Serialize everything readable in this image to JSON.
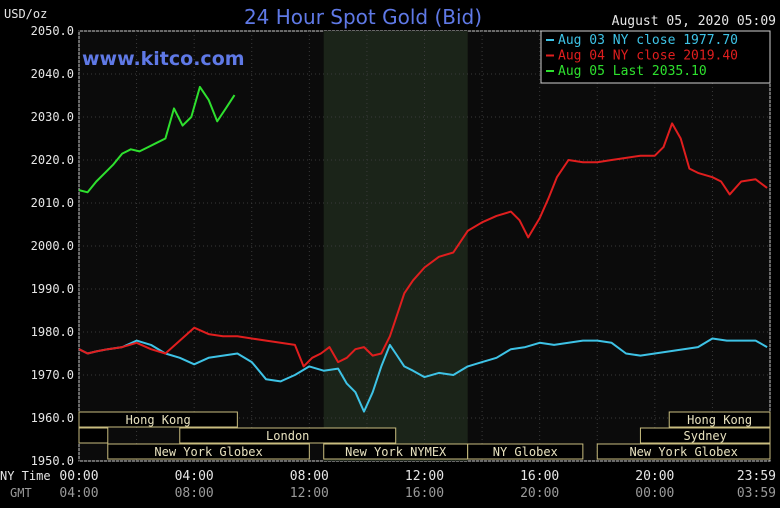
{
  "chart_data": {
    "type": "line",
    "title": "24 Hour Spot Gold (Bid)",
    "website": "www.kitco.com",
    "ylabel": "USD/oz",
    "timestamp": "August 05, 2020 05:09",
    "ylim": [
      1950,
      2050
    ],
    "xlim": [
      0,
      24
    ],
    "y_ticks": [
      "2050.0",
      "2040.0",
      "2030.0",
      "2020.0",
      "2010.0",
      "2000.0",
      "1990.0",
      "1980.0",
      "1970.0",
      "1960.0",
      "1950.0"
    ],
    "x_ticks_ny": [
      "00:00",
      "04:00",
      "08:00",
      "12:00",
      "16:00",
      "20:00",
      "23:59"
    ],
    "x_ticks_gmt": [
      "04:00",
      "08:00",
      "12:00",
      "16:00",
      "20:00",
      "00:00",
      "03:59"
    ],
    "x_row_labels": {
      "ny": "NY Time",
      "gmt": "GMT"
    },
    "grid": true,
    "legend_position": "top-right",
    "shaded_region": [
      8.5,
      13.5
    ],
    "sessions": [
      {
        "name": "Hong Kong",
        "start": 0,
        "end": 5.5,
        "row": 0
      },
      {
        "name": "Hong Kong",
        "start": 20.5,
        "end": 24,
        "row": 0
      },
      {
        "name": "",
        "start": 0,
        "end": 1,
        "row": 1
      },
      {
        "name": "London",
        "start": 3.5,
        "end": 11,
        "row": 1
      },
      {
        "name": "Sydney",
        "start": 19.5,
        "end": 24,
        "row": 1
      },
      {
        "name": "New York Globex",
        "start": 1,
        "end": 8,
        "row": 2
      },
      {
        "name": "New York NYMEX",
        "start": 8.5,
        "end": 13.5,
        "row": 2
      },
      {
        "name": "NY Globex",
        "start": 13.5,
        "end": 17.5,
        "row": 2
      },
      {
        "name": "New York Globex",
        "start": 18,
        "end": 24,
        "row": 2
      }
    ],
    "series": [
      {
        "name": "Aug 03 NY close 1977.70",
        "color": "#3ec3e6",
        "x": [
          0,
          0.3,
          0.6,
          1.0,
          1.5,
          2.0,
          2.5,
          3.0,
          3.5,
          4.0,
          4.5,
          5.0,
          5.5,
          6.0,
          6.5,
          7.0,
          7.5,
          8.0,
          8.5,
          9.0,
          9.3,
          9.6,
          9.9,
          10.2,
          10.5,
          10.8,
          11.0,
          11.3,
          11.6,
          12.0,
          12.5,
          13.0,
          13.5,
          14.0,
          14.5,
          15.0,
          15.5,
          16.0,
          16.5,
          17.0,
          17.5,
          18.0,
          18.5,
          19.0,
          19.5,
          20.0,
          20.5,
          21.0,
          21.5,
          22.0,
          22.5,
          23.0,
          23.5,
          23.9
        ],
        "values": [
          1976,
          1975,
          1975.5,
          1976,
          1976.5,
          1978,
          1977,
          1975,
          1974,
          1972.5,
          1974,
          1974.5,
          1975,
          1973,
          1969,
          1968.5,
          1970,
          1972,
          1971,
          1971.5,
          1968,
          1966,
          1961.5,
          1966,
          1972,
          1977,
          1975,
          1972,
          1971,
          1969.5,
          1970.5,
          1970,
          1972,
          1973,
          1974,
          1976,
          1976.5,
          1977.5,
          1977,
          1977.5,
          1978,
          1978,
          1977.5,
          1975,
          1974.5,
          1975,
          1975.5,
          1976,
          1976.5,
          1978.5,
          1978,
          1978,
          1978,
          1976.5
        ]
      },
      {
        "name": "Aug 04 NY close 2019.40",
        "color": "#e01e1e",
        "x": [
          0,
          0.3,
          0.6,
          1.0,
          1.5,
          2.0,
          2.5,
          3.0,
          3.5,
          4.0,
          4.5,
          5.0,
          5.5,
          6.0,
          6.5,
          7.0,
          7.5,
          7.8,
          8.1,
          8.4,
          8.7,
          9.0,
          9.3,
          9.6,
          9.9,
          10.2,
          10.5,
          10.8,
          11.0,
          11.3,
          11.6,
          12.0,
          12.5,
          13.0,
          13.5,
          14.0,
          14.5,
          15.0,
          15.3,
          15.6,
          16.0,
          16.3,
          16.6,
          17.0,
          17.5,
          18.0,
          18.5,
          19.0,
          19.5,
          20.0,
          20.3,
          20.6,
          20.9,
          21.2,
          21.5,
          22.0,
          22.3,
          22.6,
          23.0,
          23.5,
          23.9
        ],
        "values": [
          1976,
          1975,
          1975.5,
          1976,
          1976.5,
          1977.5,
          1976,
          1975,
          1978,
          1981,
          1979.5,
          1979,
          1979,
          1978.5,
          1978,
          1977.5,
          1977,
          1972,
          1974,
          1975,
          1976.5,
          1973,
          1974,
          1976,
          1976.5,
          1974.5,
          1975,
          1979,
          1983,
          1989,
          1992,
          1995,
          1997.5,
          1998.5,
          2003.5,
          2005.5,
          2007,
          2008,
          2006,
          2002,
          2006.5,
          2011,
          2016,
          2020,
          2019.5,
          2019.5,
          2020,
          2020.5,
          2021,
          2021,
          2023,
          2028.5,
          2025,
          2018,
          2017,
          2016,
          2015,
          2012,
          2015,
          2015.5,
          2013.5
        ]
      },
      {
        "name": "Aug 05 Last 2035.10",
        "color": "#2ee02e",
        "x": [
          0,
          0.3,
          0.6,
          0.9,
          1.2,
          1.5,
          1.8,
          2.1,
          2.4,
          2.7,
          3.0,
          3.3,
          3.6,
          3.9,
          4.2,
          4.5,
          4.8,
          5.1,
          5.4
        ],
        "values": [
          2013,
          2012.5,
          2015,
          2017,
          2019,
          2021.5,
          2022.5,
          2022,
          2023,
          2024,
          2025,
          2032,
          2028,
          2030,
          2037,
          2034,
          2029,
          2032,
          2035.1
        ]
      }
    ]
  }
}
